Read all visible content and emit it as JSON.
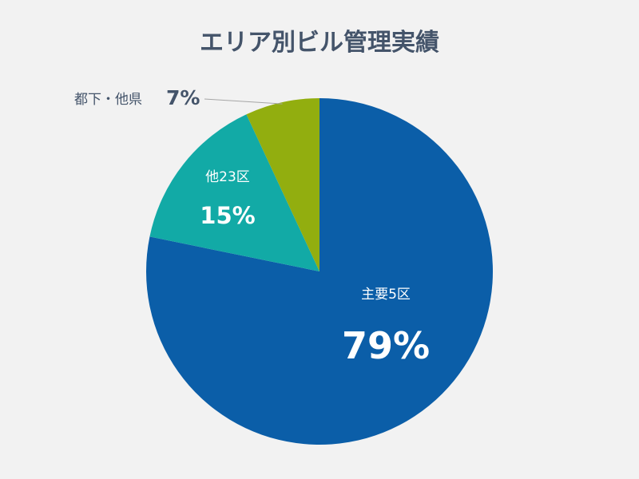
{
  "chart_data": {
    "type": "pie",
    "title": "エリア別ビル管理実績",
    "slices": [
      {
        "label": "主要5区",
        "value": 79,
        "value_label": "79%",
        "color": "#0b5ea8"
      },
      {
        "label": "他23区",
        "value": 15,
        "value_label": "15%",
        "color": "#12aaa6"
      },
      {
        "label": "都下・他県",
        "value": 7,
        "value_label": "7%",
        "color": "#92ae0f"
      }
    ],
    "start_angle": "12 o'clock",
    "direction": "clockwise",
    "legend": "none",
    "data_labels": "label and percent on slices; outside label with leader line for smallest slice"
  }
}
